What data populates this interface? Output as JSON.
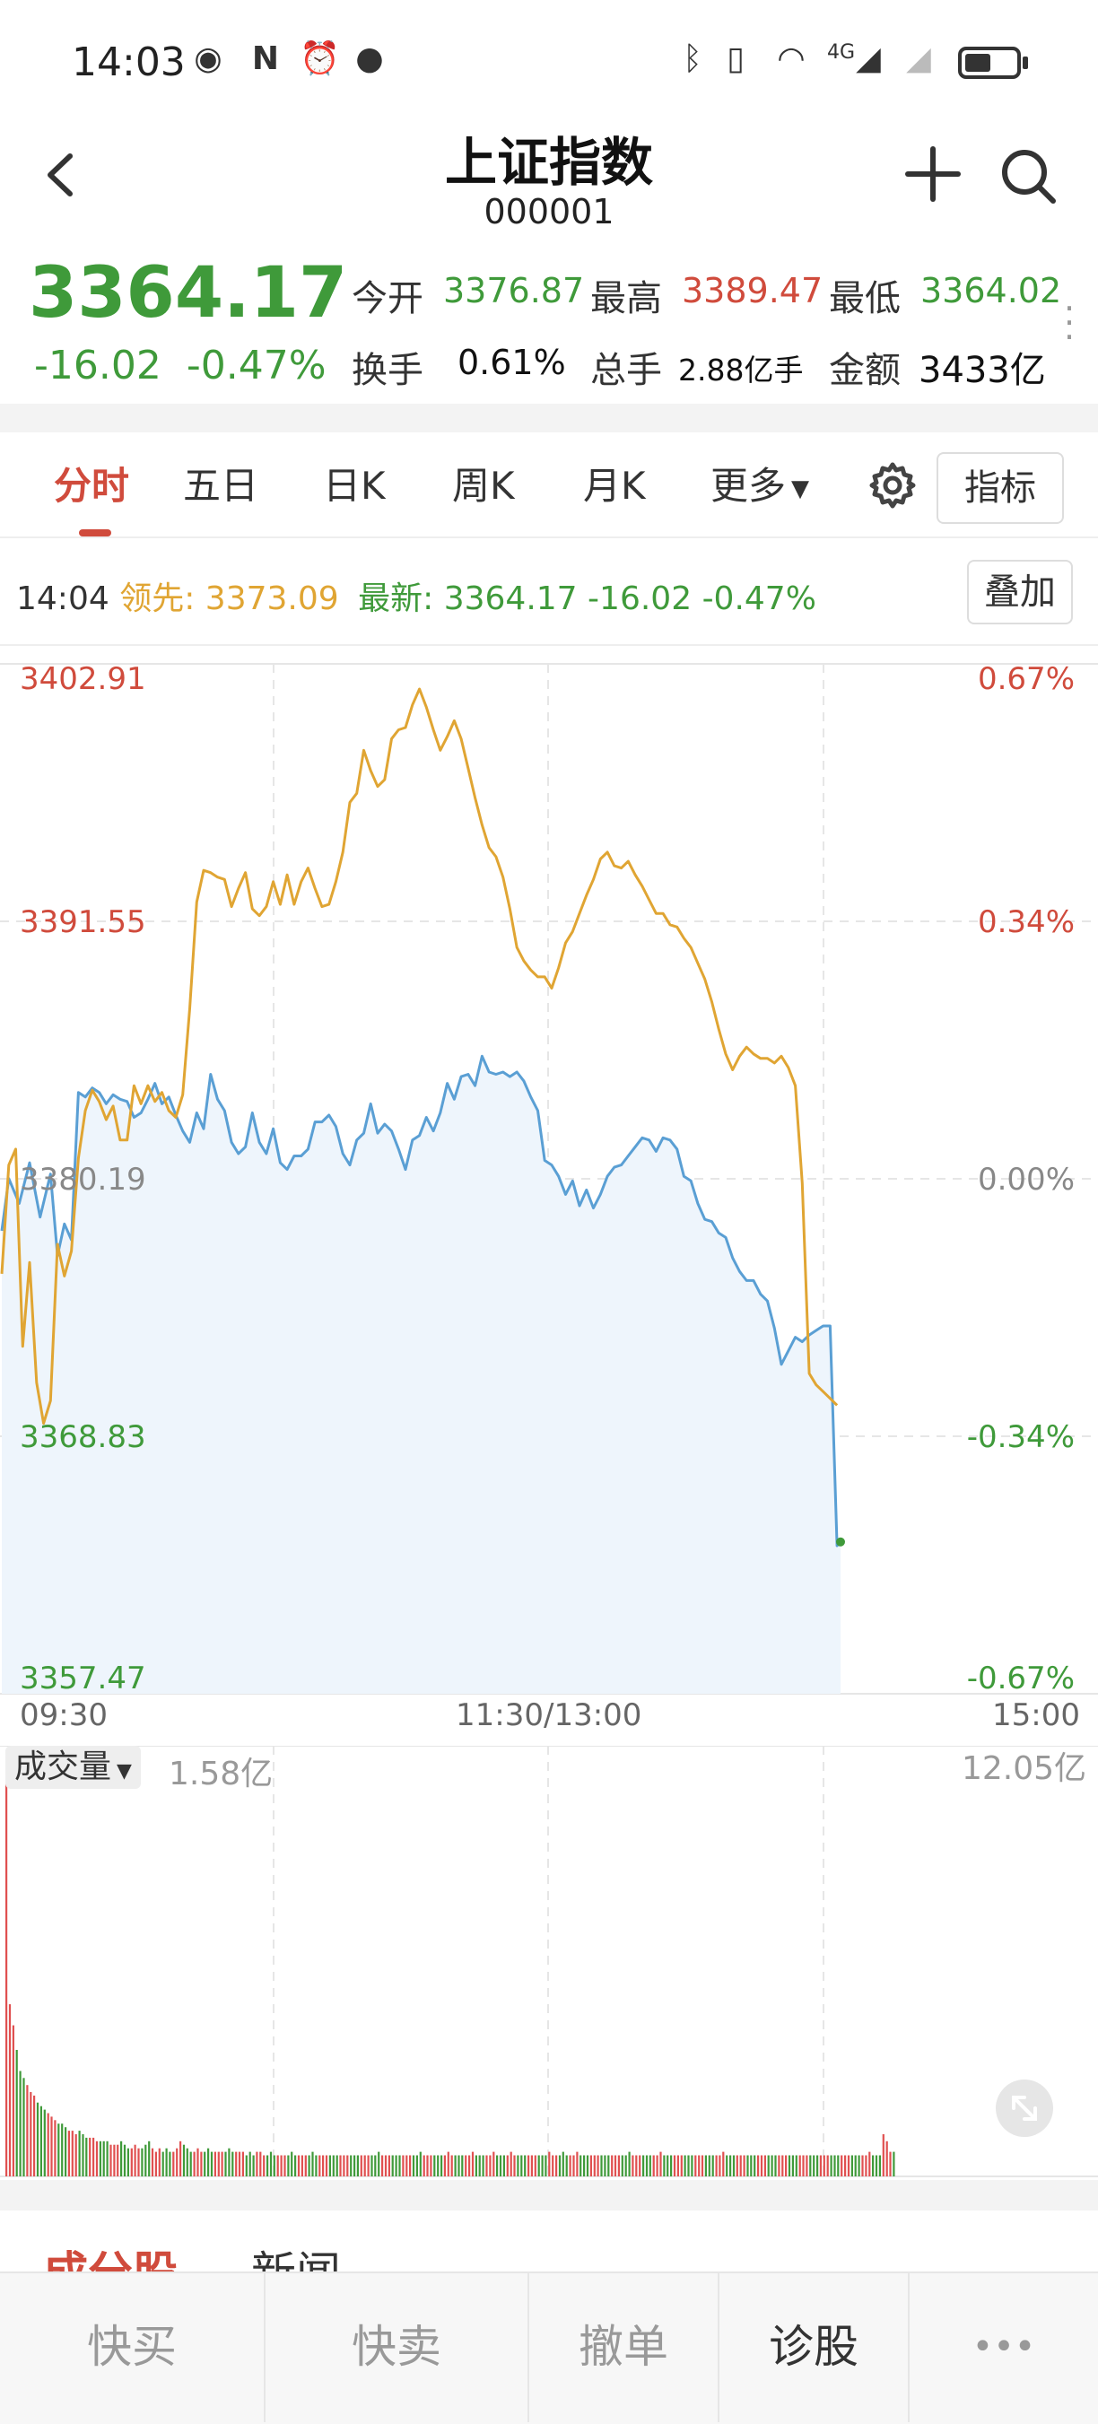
{
  "status_bar": {
    "time": "14:03",
    "icons": [
      "eye-icon",
      "nfc-icon",
      "alarm-icon",
      "wechat-icon",
      "bluetooth-icon",
      "vibrate-icon",
      "wifi-icon",
      "4g-signal-icon",
      "signal-icon",
      "battery-icon"
    ],
    "network": "4G",
    "battery_level": 0.5
  },
  "header": {
    "title": "上证指数",
    "code": "000001",
    "back_icon": "chevron-left-icon",
    "add_icon": "plus-icon",
    "search_icon": "search-icon"
  },
  "quote": {
    "price": "3364.17",
    "change": "-16.02",
    "change_pct": "-0.47%",
    "open_label": "今开",
    "open": "3376.87",
    "high_label": "最高",
    "high": "3389.47",
    "low_label": "最低",
    "low": "3364.02",
    "turnover_label": "换手",
    "turnover": "0.61%",
    "volume_label": "总手",
    "volume": "2.88亿手",
    "amount_label": "金额",
    "amount": "3433亿"
  },
  "tabs": {
    "items": [
      "分时",
      "五日",
      "日K",
      "周K",
      "月K",
      "更多"
    ],
    "active": 0,
    "more_arrow": "▼",
    "settings_icon": "gear-icon",
    "indicator_label": "指标"
  },
  "info": {
    "time": "14:04",
    "lead_label": "领先:",
    "lead_value": "3373.09",
    "latest_label": "最新:",
    "latest_value": "3364.17",
    "latest_change": "-16.02",
    "latest_pct": "-0.47%",
    "overlay_label": "叠加"
  },
  "chart_data": {
    "type": "line",
    "y_axis_left": [
      "3402.91",
      "3391.55",
      "3380.19",
      "3368.83",
      "3357.47"
    ],
    "y_axis_right": [
      "0.67%",
      "0.34%",
      "0.00%",
      "-0.34%",
      "-0.67%"
    ],
    "ylim": [
      3357.47,
      3402.91
    ],
    "prev_close": 3380.19,
    "x_labels": [
      "09:30",
      "11:30/13:00",
      "15:00"
    ],
    "grid": true,
    "series": [
      {
        "name": "最新",
        "color": "#5a9fd4",
        "fill": "#eef5fc",
        "x": [
          0,
          2,
          5,
          8,
          11,
          14,
          16,
          18,
          20,
          22,
          24,
          26,
          28,
          30,
          32,
          34,
          36,
          38,
          40,
          42,
          44,
          46,
          48,
          50,
          52,
          54,
          56,
          58,
          60,
          62,
          64,
          66,
          68,
          70,
          72,
          74,
          76,
          78,
          80,
          82,
          84,
          86,
          88,
          90,
          92,
          94,
          96,
          98,
          100,
          102,
          104,
          106,
          108,
          110,
          112,
          114,
          116,
          118,
          120,
          122,
          124,
          126,
          128,
          130,
          132,
          134,
          136,
          138,
          140,
          142,
          144,
          146,
          148,
          150,
          152,
          154,
          156,
          158,
          160,
          162,
          164,
          166,
          168,
          170,
          172,
          174,
          176,
          178,
          180,
          182,
          184,
          186,
          188,
          190,
          192,
          194,
          196,
          198,
          200,
          202,
          204,
          206,
          208,
          210,
          212,
          214,
          216,
          218,
          220,
          222,
          224,
          226,
          228,
          230,
          232,
          234,
          236,
          238,
          240,
          241
        ],
        "values": [
          3377.9,
          3380.2,
          3379.1,
          3380.9,
          3378.5,
          3380.4,
          3376.8,
          3378.2,
          3377.5,
          3384.0,
          3383.8,
          3384.2,
          3384.0,
          3383.5,
          3383.9,
          3383.7,
          3383.6,
          3382.9,
          3383.1,
          3383.7,
          3384.4,
          3383.5,
          3383.8,
          3383.0,
          3382.3,
          3381.8,
          3383.1,
          3382.4,
          3384.8,
          3383.7,
          3383.2,
          3381.8,
          3381.3,
          3381.6,
          3383.1,
          3381.8,
          3381.3,
          3382.4,
          3380.9,
          3380.6,
          3381.2,
          3381.2,
          3381.5,
          3382.7,
          3382.7,
          3383.0,
          3382.5,
          3381.3,
          3380.8,
          3381.9,
          3382.2,
          3383.5,
          3382.2,
          3382.6,
          3382.3,
          3381.5,
          3380.6,
          3381.9,
          3382.1,
          3382.9,
          3382.3,
          3383.1,
          3384.4,
          3383.7,
          3384.7,
          3384.8,
          3384.3,
          3385.6,
          3384.9,
          3384.8,
          3384.9,
          3384.7,
          3384.9,
          3384.5,
          3383.8,
          3383.2,
          3381.0,
          3380.8,
          3380.3,
          3379.5,
          3380.1,
          3379.0,
          3379.7,
          3378.9,
          3379.5,
          3380.3,
          3380.7,
          3380.8,
          3381.2,
          3381.6,
          3382.0,
          3381.9,
          3381.4,
          3382.0,
          3381.9,
          3381.5,
          3380.3,
          3380.1,
          3379.1,
          3378.4,
          3378.3,
          3377.8,
          3377.6,
          3376.7,
          3376.1,
          3375.7,
          3375.7,
          3375.1,
          3374.8,
          3373.6,
          3372.0,
          3372.6,
          3373.2,
          3373.0,
          3373.3,
          3373.5,
          3373.7,
          3373.7,
          3364.0,
          3364.17
        ]
      },
      {
        "name": "领先",
        "color": "#e0a533",
        "x": [
          0,
          2,
          4,
          6,
          8,
          10,
          12,
          14,
          16,
          18,
          20,
          22,
          24,
          26,
          28,
          30,
          32,
          34,
          36,
          38,
          40,
          42,
          44,
          46,
          48,
          50,
          52,
          54,
          56,
          58,
          60,
          62,
          64,
          66,
          68,
          70,
          72,
          74,
          76,
          78,
          80,
          82,
          84,
          86,
          88,
          90,
          92,
          94,
          96,
          98,
          100,
          102,
          104,
          106,
          108,
          110,
          112,
          114,
          116,
          118,
          120,
          122,
          124,
          126,
          128,
          130,
          132,
          134,
          136,
          138,
          140,
          142,
          144,
          146,
          148,
          150,
          152,
          154,
          156,
          158,
          160,
          162,
          164,
          166,
          168,
          170,
          172,
          174,
          176,
          178,
          180,
          182,
          184,
          186,
          188,
          190,
          192,
          194,
          196,
          198,
          200,
          202,
          204,
          206,
          208,
          210,
          212,
          214,
          216,
          218,
          220,
          222,
          224,
          226,
          228,
          230,
          232,
          234,
          236,
          238,
          240
        ],
        "values": [
          3376.0,
          3380.8,
          3381.5,
          3372.8,
          3376.5,
          3371.2,
          3369.4,
          3370.4,
          3377.3,
          3375.9,
          3377.0,
          3381.1,
          3383.2,
          3384.1,
          3383.6,
          3382.8,
          3383.4,
          3381.9,
          3381.9,
          3384.3,
          3383.5,
          3384.3,
          3383.6,
          3384.0,
          3383.2,
          3382.9,
          3383.9,
          3387.7,
          3392.4,
          3393.8,
          3393.7,
          3393.5,
          3393.4,
          3392.2,
          3393.0,
          3393.7,
          3392.1,
          3391.8,
          3392.2,
          3393.3,
          3392.3,
          3393.6,
          3392.3,
          3393.3,
          3393.9,
          3393.0,
          3392.2,
          3392.3,
          3393.3,
          3394.6,
          3396.8,
          3397.2,
          3399.1,
          3398.2,
          3397.5,
          3397.8,
          3399.6,
          3400.0,
          3400.1,
          3401.1,
          3401.8,
          3401.0,
          3400.0,
          3399.1,
          3399.7,
          3400.4,
          3399.6,
          3398.3,
          3397.0,
          3395.8,
          3394.8,
          3394.4,
          3393.5,
          3392.1,
          3390.4,
          3389.8,
          3389.4,
          3389.1,
          3389.1,
          3388.6,
          3389.5,
          3390.6,
          3391.1,
          3391.9,
          3392.7,
          3393.4,
          3394.3,
          3394.6,
          3394.0,
          3393.9,
          3394.2,
          3393.6,
          3393.1,
          3392.5,
          3391.9,
          3391.9,
          3391.4,
          3391.3,
          3390.8,
          3390.4,
          3389.7,
          3389.0,
          3388.0,
          3386.8,
          3385.7,
          3385.0,
          3385.6,
          3386.0,
          3385.7,
          3385.5,
          3385.5,
          3385.3,
          3385.6,
          3385.1,
          3384.3,
          3380.0,
          3371.6,
          3371.1,
          3370.8,
          3370.5,
          3370.2
        ]
      }
    ],
    "latest_point": 3364.17
  },
  "volume": {
    "selector_label": "成交量",
    "latest": "1.58亿",
    "max_label": "12.05亿",
    "expand_icon": "expand-arrows-icon",
    "chart_data": {
      "type": "bar",
      "unit": "亿",
      "ymax": 12.05,
      "values": [
        12.05,
        4.9,
        4.3,
        3.6,
        3.0,
        2.8,
        2.6,
        2.4,
        2.3,
        2.1,
        2.0,
        1.9,
        1.8,
        1.7,
        1.6,
        1.5,
        1.5,
        1.4,
        1.3,
        1.3,
        1.2,
        1.3,
        1.2,
        1.1,
        1.1,
        1.1,
        1.0,
        1.0,
        1.0,
        1.0,
        0.9,
        0.9,
        0.9,
        1.0,
        0.9,
        0.8,
        0.8,
        0.9,
        0.8,
        0.8,
        0.9,
        1.0,
        0.8,
        0.7,
        0.8,
        0.7,
        0.8,
        0.7,
        0.7,
        0.8,
        1.0,
        0.9,
        0.8,
        0.7,
        0.7,
        0.8,
        0.7,
        0.7,
        0.8,
        0.7,
        0.7,
        0.7,
        0.7,
        0.7,
        0.8,
        0.7,
        0.7,
        0.7,
        0.7,
        0.6,
        0.7,
        0.6,
        0.7,
        0.7,
        0.6,
        0.6,
        0.7,
        0.6,
        0.6,
        0.6,
        0.6,
        0.6,
        0.7,
        0.6,
        0.6,
        0.6,
        0.6,
        0.6,
        0.7,
        0.6,
        0.6,
        0.6,
        0.6,
        0.6,
        0.6,
        0.6,
        0.6,
        0.6,
        0.6,
        0.6,
        0.6,
        0.6,
        0.6,
        0.6,
        0.6,
        0.6,
        0.6,
        0.7,
        0.6,
        0.6,
        0.6,
        0.6,
        0.6,
        0.6,
        0.6,
        0.6,
        0.6,
        0.6,
        0.6,
        0.7,
        0.6,
        0.6,
        0.6,
        0.6,
        0.6,
        0.6,
        0.6,
        0.7,
        0.6,
        0.6,
        0.6,
        0.6,
        0.6,
        0.6,
        0.7,
        0.6,
        0.6,
        0.6,
        0.6,
        0.6,
        0.7,
        0.6,
        0.6,
        0.6,
        0.6,
        0.7,
        0.6,
        0.6,
        0.6,
        0.6,
        0.6,
        0.6,
        0.6,
        0.6,
        0.6,
        0.6,
        0.7,
        0.6,
        0.6,
        0.6,
        0.7,
        0.6,
        0.6,
        0.6,
        0.7,
        0.6,
        0.6,
        0.6,
        0.6,
        0.6,
        0.6,
        0.6,
        0.6,
        0.6,
        0.6,
        0.6,
        0.6,
        0.6,
        0.6,
        0.7,
        0.6,
        0.6,
        0.6,
        0.6,
        0.6,
        0.6,
        0.6,
        0.6,
        0.7,
        0.6,
        0.6,
        0.6,
        0.6,
        0.6,
        0.6,
        0.6,
        0.6,
        0.6,
        0.6,
        0.6,
        0.6,
        0.6,
        0.6,
        0.6,
        0.6,
        0.6,
        0.7,
        0.6,
        0.6,
        0.6,
        0.6,
        0.6,
        0.6,
        0.6,
        0.6,
        0.6,
        0.6,
        0.6,
        0.6,
        0.6,
        0.6,
        0.6,
        0.6,
        0.6,
        0.6,
        0.6,
        0.6,
        0.6,
        0.6,
        0.6,
        0.6,
        0.6,
        0.6,
        0.6,
        0.6,
        0.6,
        0.6,
        0.6,
        0.6,
        0.6,
        0.6,
        0.6,
        0.6,
        0.6,
        0.6,
        0.6,
        0.6,
        0.6,
        0.7,
        0.6,
        0.6,
        0.6,
        1.2,
        1.0,
        0.7,
        0.7
      ],
      "colors": [
        "#e05050",
        "#3f9a3a"
      ]
    }
  },
  "sections": {
    "items": [
      "成分股",
      "新闻"
    ],
    "active": 0
  },
  "bottom_bar": {
    "items": [
      "快买",
      "快卖",
      "撤单",
      "诊股"
    ],
    "more_icon": "ellipsis-icon",
    "more_glyph": "•••"
  }
}
